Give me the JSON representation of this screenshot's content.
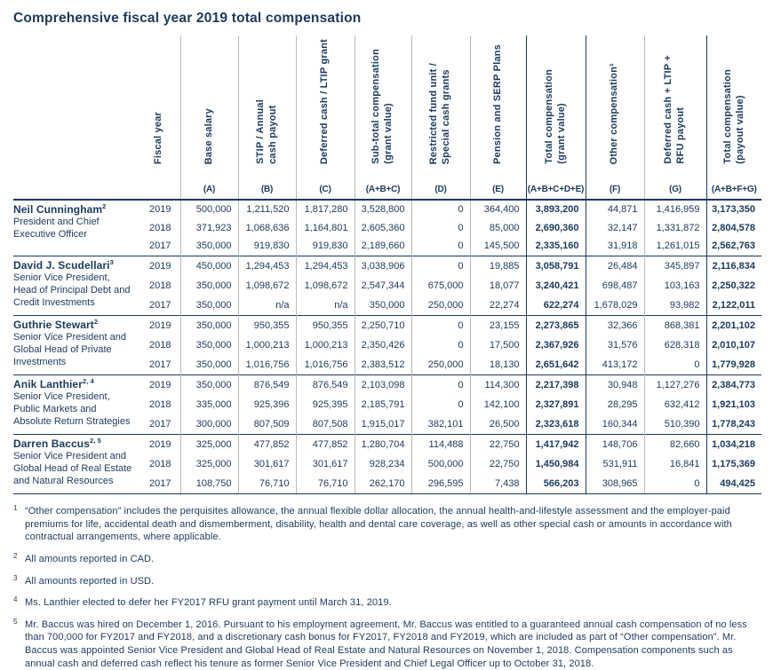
{
  "title": "Comprehensive fiscal year 2019 total compensation",
  "colors": {
    "navy": "#1b3a5e",
    "divider": "#b7bbbf"
  },
  "table": {
    "columns": [
      {
        "label": "Fiscal year",
        "letter": ""
      },
      {
        "label": "Base salary",
        "letter": "(A)"
      },
      {
        "label": "STIP / Annual\ncash payout",
        "letter": "(B)"
      },
      {
        "label": "Deferred cash / LTIP grant",
        "letter": "(C)"
      },
      {
        "label": "Sub-total compensation\n(grant value)",
        "letter": "(A+B+C)"
      },
      {
        "label": "Restricted fund unit /\nSpecial cash grants",
        "letter": "(D)"
      },
      {
        "label": "Pension and SERP Plans",
        "letter": "(E)"
      },
      {
        "label": "Total compensation\n(grant value)",
        "letter": "(A+B+C+D+E)"
      },
      {
        "label": "Other compensation¹",
        "letter": "(F)"
      },
      {
        "label": "Deferred cash + LTIP +\nRFU payout",
        "letter": "(G)"
      },
      {
        "label": "Total compensation\n(payout value)",
        "letter": "(A+B+F+G)"
      }
    ],
    "groups": [
      {
        "name": "Neil Cunningham",
        "name_sup": "2",
        "role": "President and Chief Executive Officer",
        "rows": [
          {
            "year": "2019",
            "values": [
              "500,000",
              "1,211,520",
              "1,817,280",
              "3,528,800",
              "0",
              "364,400",
              "3,893,200",
              "44,871",
              "1,416,959",
              "3,173,350"
            ]
          },
          {
            "year": "2018",
            "values": [
              "371,923",
              "1,068,636",
              "1,164,801",
              "2,605,360",
              "0",
              "85,000",
              "2,690,360",
              "32,147",
              "1,331,872",
              "2,804,578"
            ]
          },
          {
            "year": "2017",
            "values": [
              "350,000",
              "919,830",
              "919,830",
              "2,189,660",
              "0",
              "145,500",
              "2,335,160",
              "31,918",
              "1,261,015",
              "2,562,763"
            ]
          }
        ]
      },
      {
        "name": "David J. Scudellari",
        "name_sup": "3",
        "role": "Senior Vice President, Head of Principal Debt and Credit Investments",
        "rows": [
          {
            "year": "2019",
            "values": [
              "450,000",
              "1,294,453",
              "1,294,453",
              "3,038,906",
              "0",
              "19,885",
              "3,058,791",
              "26,484",
              "345,897",
              "2,116,834"
            ]
          },
          {
            "year": "2018",
            "values": [
              "350,000",
              "1,098,672",
              "1,098,672",
              "2,547,344",
              "675,000",
              "18,077",
              "3,240,421",
              "698,487",
              "103,163",
              "2,250,322"
            ]
          },
          {
            "year": "2017",
            "values": [
              "350,000",
              "n/a",
              "n/a",
              "350,000",
              "250,000",
              "22,274",
              "622,274",
              "1,678,029",
              "93,982",
              "2,122,011"
            ]
          }
        ]
      },
      {
        "name": "Guthrie Stewart",
        "name_sup": "2",
        "role": "Senior Vice President and Global Head of Private Investments",
        "rows": [
          {
            "year": "2019",
            "values": [
              "350,000",
              "950,355",
              "950,355",
              "2,250,710",
              "0",
              "23,155",
              "2,273,865",
              "32,366",
              "868,381",
              "2,201,102"
            ]
          },
          {
            "year": "2018",
            "values": [
              "350,000",
              "1,000,213",
              "1,000,213",
              "2,350,426",
              "0",
              "17,500",
              "2,367,926",
              "31,576",
              "628,318",
              "2,010,107"
            ]
          },
          {
            "year": "2017",
            "values": [
              "350,000",
              "1,016,756",
              "1,016,756",
              "2,383,512",
              "250,000",
              "18,130",
              "2,651,642",
              "413,172",
              "0",
              "1,779,928"
            ]
          }
        ]
      },
      {
        "name": "Anik Lanthier",
        "name_sup": "2, 4",
        "role": "Senior Vice President, Public Markets and Absolute Return Strategies",
        "rows": [
          {
            "year": "2019",
            "values": [
              "350,000",
              "876,549",
              "876,549",
              "2,103,098",
              "0",
              "114,300",
              "2,217,398",
              "30,948",
              "1,127,276",
              "2,384,773"
            ]
          },
          {
            "year": "2018",
            "values": [
              "335,000",
              "925,396",
              "925,395",
              "2,185,791",
              "0",
              "142,100",
              "2,327,891",
              "28,295",
              "632,412",
              "1,921,103"
            ]
          },
          {
            "year": "2017",
            "values": [
              "300,000",
              "807,509",
              "807,508",
              "1,915,017",
              "382,101",
              "26,500",
              "2,323,618",
              "160,344",
              "510,390",
              "1,778,243"
            ]
          }
        ]
      },
      {
        "name": "Darren Baccus",
        "name_sup": "2, 5",
        "role": "Senior Vice President and Global Head of Real Estate and Natural Resources",
        "rows": [
          {
            "year": "2019",
            "values": [
              "325,000",
              "477,852",
              "477,852",
              "1,280,704",
              "114,488",
              "22,750",
              "1,417,942",
              "148,706",
              "82,660",
              "1,034,218"
            ]
          },
          {
            "year": "2018",
            "values": [
              "325,000",
              "301,617",
              "301,617",
              "928,234",
              "500,000",
              "22,750",
              "1,450,984",
              "531,911",
              "16,841",
              "1,175,369"
            ]
          },
          {
            "year": "2017",
            "values": [
              "108,750",
              "76,710",
              "76,710",
              "262,170",
              "296,595",
              "7,438",
              "566,203",
              "308,965",
              "0",
              "494,425"
            ]
          }
        ]
      }
    ]
  },
  "footnotes": [
    {
      "marker": "1",
      "text": "“Other compensation” includes the perquisites allowance, the annual flexible dollar allocation, the annual health-and-lifestyle assessment and the employer-paid premiums for life, accidental death and dismemberment, disability, health and dental care coverage, as well as other special cash or amounts in accordance with contractual arrangements, where applicable."
    },
    {
      "marker": "2",
      "text": "All amounts reported in CAD."
    },
    {
      "marker": "3",
      "text": "All amounts reported in USD."
    },
    {
      "marker": "4",
      "text": "Ms. Lanthier elected to defer her FY2017 RFU grant payment until March 31, 2019."
    },
    {
      "marker": "5",
      "text": "Mr. Baccus was hired on December 1, 2016. Pursuant to his employment agreement, Mr. Baccus was entitled to a guaranteed annual cash compensation of no less than 700,000 for FY2017 and FY2018, and a discretionary cash bonus for FY2017, FY2018 and FY2019, which are included as part of “Other compensation”. Mr. Baccus was appointed Senior Vice President and Global Head of Real Estate and Natural Resources on November 1, 2018. Compensation components such as annual cash and deferred cash reflect his tenure as former Senior Vice President and Chief Legal Officer up to October 31, 2018."
    }
  ]
}
